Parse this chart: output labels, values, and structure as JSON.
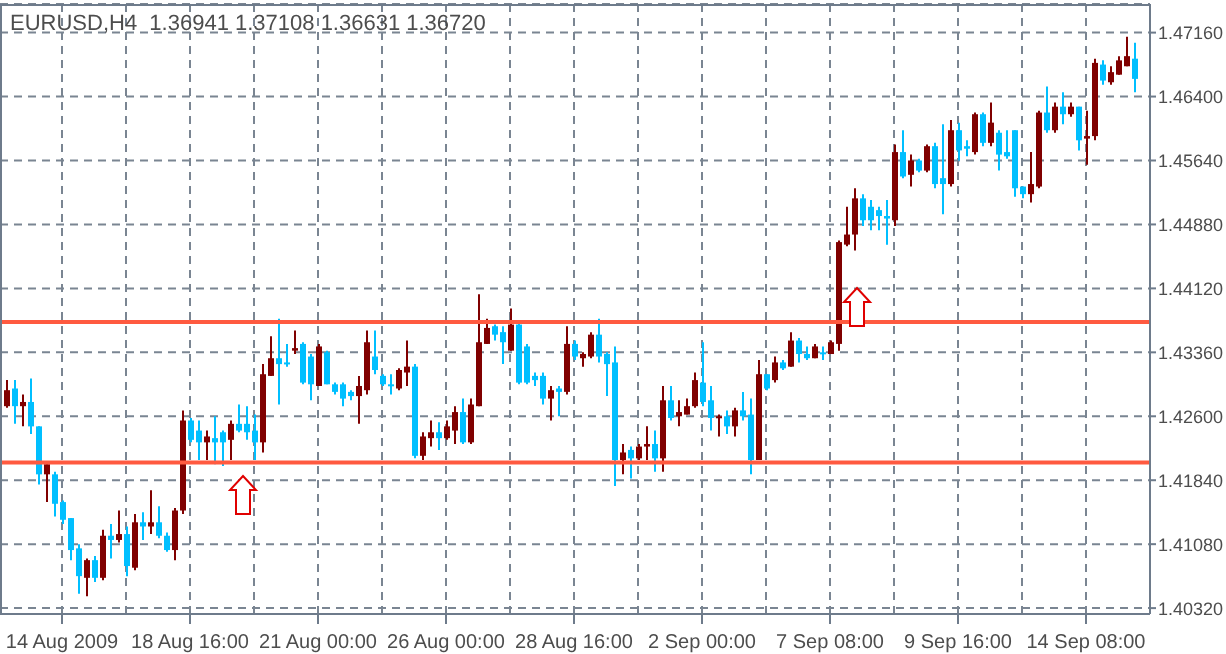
{
  "chart_data": {
    "type": "candlestick",
    "title": "EURUSD,H4  1.36941 1.37108 1.36631 1.36720",
    "categories": [
      null,
      null,
      null,
      null,
      null,
      null,
      null,
      "14 Aug 2009",
      null,
      null,
      null,
      null,
      null,
      null,
      null,
      null,
      null,
      null,
      null,
      null,
      null,
      null,
      null,
      "18 Aug 16:00",
      null,
      null,
      null,
      null,
      null,
      null,
      null,
      null,
      null,
      null,
      null,
      null,
      null,
      null,
      null,
      "21 Aug 00:00",
      null,
      null,
      null,
      null,
      null,
      null,
      null,
      null,
      null,
      null,
      null,
      null,
      null,
      null,
      null,
      "26 Aug 00:00",
      null,
      null,
      null,
      null,
      null,
      null,
      null,
      null,
      null,
      null,
      null,
      null,
      null,
      null,
      null,
      "28 Aug 16:00",
      null,
      null,
      null,
      null,
      null,
      null,
      null,
      null,
      null,
      null,
      null,
      null,
      null,
      null,
      null,
      "2 Sep 00:00",
      null,
      null,
      null,
      null,
      null,
      null,
      null,
      null,
      null,
      null,
      null,
      null,
      null,
      null,
      null,
      "7 Sep 08:00",
      null,
      null,
      null,
      null,
      null,
      null,
      null,
      null,
      null,
      null,
      null,
      null,
      null,
      null,
      null,
      "9 Sep 16:00",
      null,
      null,
      null,
      null,
      null,
      null,
      null,
      null,
      null,
      null,
      null,
      null,
      null,
      null,
      null,
      "14 Sep 08:00",
      null,
      null,
      null,
      null,
      null,
      null
    ],
    "ohlc": [
      [
        1.4272,
        1.4303,
        1.427,
        1.4291
      ],
      [
        1.4293,
        1.4303,
        1.4251,
        1.4272
      ],
      [
        1.4272,
        1.4286,
        1.4248,
        1.4277
      ],
      [
        1.4277,
        1.4305,
        1.4239,
        1.4248
      ],
      [
        1.4248,
        1.4248,
        1.4179,
        1.4191
      ],
      [
        1.4191,
        1.4203,
        1.4158,
        1.4203
      ],
      [
        1.4191,
        1.4194,
        1.4141,
        1.4156
      ],
      [
        1.4158,
        1.416,
        1.4132,
        1.4137
      ],
      [
        1.4139,
        1.4139,
        1.4089,
        1.4101
      ],
      [
        1.4103,
        1.4108,
        1.4049,
        1.407
      ],
      [
        1.4068,
        1.4091,
        1.4046,
        1.4089
      ],
      [
        1.4089,
        1.4094,
        1.4063,
        1.4068
      ],
      [
        1.4068,
        1.4125,
        1.4065,
        1.4118
      ],
      [
        1.4118,
        1.4132,
        1.4091,
        1.4113
      ],
      [
        1.4113,
        1.4148,
        1.411,
        1.412
      ],
      [
        1.412,
        1.4129,
        1.407,
        1.4082
      ],
      [
        1.408,
        1.4144,
        1.4077,
        1.4134
      ],
      [
        1.4134,
        1.4146,
        1.4113,
        1.4129
      ],
      [
        1.4129,
        1.4172,
        1.412,
        1.4134
      ],
      [
        1.4134,
        1.4153,
        1.4115,
        1.4118
      ],
      [
        1.4118,
        1.4122,
        1.4099,
        1.4101
      ],
      [
        1.4101,
        1.4151,
        1.4089,
        1.4148
      ],
      [
        1.4148,
        1.4267,
        1.4144,
        1.4255
      ],
      [
        1.4255,
        1.4258,
        1.4229,
        1.4232
      ],
      [
        1.4243,
        1.4255,
        1.4208,
        1.4229
      ],
      [
        1.4229,
        1.4243,
        1.4208,
        1.4236
      ],
      [
        1.4234,
        1.426,
        1.4203,
        1.4229
      ],
      [
        1.4241,
        1.4243,
        1.4201,
        1.4229
      ],
      [
        1.4232,
        1.4255,
        1.4208,
        1.4251
      ],
      [
        1.4251,
        1.4274,
        1.4241,
        1.4243
      ],
      [
        1.4251,
        1.4272,
        1.4232,
        1.4241
      ],
      [
        1.4243,
        1.4262,
        1.4208,
        1.4229
      ],
      [
        1.4229,
        1.4322,
        1.4217,
        1.431
      ],
      [
        1.4308,
        1.4355,
        1.4308,
        1.4329
      ],
      [
        1.4329,
        1.4376,
        1.4274,
        1.4322
      ],
      [
        1.4324,
        1.4346,
        1.4319,
        1.4322
      ],
      [
        1.4338,
        1.4362,
        1.4334,
        1.4341
      ],
      [
        1.4346,
        1.4348,
        1.4298,
        1.43
      ],
      [
        1.4331,
        1.4334,
        1.4279,
        1.4298
      ],
      [
        1.4296,
        1.4346,
        1.4296,
        1.4343
      ],
      [
        1.4336,
        1.4338,
        1.4298,
        1.4298
      ],
      [
        1.4298,
        1.43,
        1.4286,
        1.4289
      ],
      [
        1.4298,
        1.43,
        1.4272,
        1.4281
      ],
      [
        1.4289,
        1.4291,
        1.4279,
        1.4284
      ],
      [
        1.4284,
        1.4308,
        1.4251,
        1.4296
      ],
      [
        1.4291,
        1.4362,
        1.4286,
        1.4348
      ],
      [
        1.4331,
        1.4362,
        1.431,
        1.4315
      ],
      [
        1.4308,
        1.431,
        1.4296,
        1.4298
      ],
      [
        1.4298,
        1.431,
        1.4286,
        1.4296
      ],
      [
        1.4293,
        1.4317,
        1.4291,
        1.4315
      ],
      [
        1.4312,
        1.435,
        1.4296,
        1.4319
      ],
      [
        1.4319,
        1.4322,
        1.421,
        1.4213
      ],
      [
        1.4213,
        1.4241,
        1.4208,
        1.4236
      ],
      [
        1.4234,
        1.4255,
        1.4224,
        1.4241
      ],
      [
        1.4241,
        1.4253,
        1.422,
        1.4234
      ],
      [
        1.4234,
        1.4255,
        1.4232,
        1.4248
      ],
      [
        1.4243,
        1.4272,
        1.4227,
        1.4265
      ],
      [
        1.4265,
        1.4281,
        1.4227,
        1.4229
      ],
      [
        1.4229,
        1.4281,
        1.4227,
        1.4274
      ],
      [
        1.4272,
        1.4405,
        1.4272,
        1.4348
      ],
      [
        1.4346,
        1.4376,
        1.4346,
        1.4365
      ],
      [
        1.4367,
        1.4369,
        1.435,
        1.4357
      ],
      [
        1.436,
        1.4367,
        1.4322,
        1.4348
      ],
      [
        1.4338,
        1.4388,
        1.4338,
        1.4369
      ],
      [
        1.4369,
        1.4372,
        1.4298,
        1.43
      ],
      [
        1.4343,
        1.4346,
        1.4298,
        1.43
      ],
      [
        1.4308,
        1.4312,
        1.4296,
        1.4303
      ],
      [
        1.4308,
        1.4312,
        1.4274,
        1.4281
      ],
      [
        1.4281,
        1.4296,
        1.4255,
        1.4291
      ],
      [
        1.4293,
        1.4296,
        1.426,
        1.4289
      ],
      [
        1.4289,
        1.4367,
        1.4286,
        1.4346
      ],
      [
        1.4346,
        1.435,
        1.4327,
        1.4331
      ],
      [
        1.4329,
        1.4336,
        1.4319,
        1.4334
      ],
      [
        1.4331,
        1.436,
        1.4329,
        1.4357
      ],
      [
        1.4357,
        1.4376,
        1.4324,
        1.4331
      ],
      [
        1.4334,
        1.4336,
        1.4284,
        1.4322
      ],
      [
        1.4324,
        1.4343,
        1.4177,
        1.4208
      ],
      [
        1.4208,
        1.4227,
        1.4191,
        1.4217
      ],
      [
        1.422,
        1.4224,
        1.4186,
        1.421
      ],
      [
        1.421,
        1.4227,
        1.4208,
        1.4224
      ],
      [
        1.4224,
        1.4248,
        1.4208,
        1.4227
      ],
      [
        1.4227,
        1.4243,
        1.4194,
        1.421
      ],
      [
        1.421,
        1.4296,
        1.4194,
        1.4279
      ],
      [
        1.4279,
        1.4296,
        1.4255,
        1.4258
      ],
      [
        1.426,
        1.4279,
        1.4248,
        1.4265
      ],
      [
        1.4262,
        1.4281,
        1.4262,
        1.4272
      ],
      [
        1.4272,
        1.4312,
        1.427,
        1.4303
      ],
      [
        1.43,
        1.4348,
        1.4272,
        1.4277
      ],
      [
        1.4279,
        1.4296,
        1.4243,
        1.4258
      ],
      [
        1.4258,
        1.4262,
        1.4236,
        1.426
      ],
      [
        1.426,
        1.4267,
        1.4239,
        1.4248
      ],
      [
        1.4248,
        1.427,
        1.4236,
        1.4267
      ],
      [
        1.4267,
        1.4289,
        1.4255,
        1.426
      ],
      [
        1.4262,
        1.4281,
        1.4191,
        1.4208
      ],
      [
        1.4208,
        1.4327,
        1.4208,
        1.431
      ],
      [
        1.431,
        1.431,
        1.4291,
        1.4293
      ],
      [
        1.4303,
        1.4331,
        1.43,
        1.4324
      ],
      [
        1.4324,
        1.4327,
        1.4315,
        1.4317
      ],
      [
        1.4319,
        1.436,
        1.4319,
        1.435
      ],
      [
        1.435,
        1.4353,
        1.4324,
        1.4334
      ],
      [
        1.4334,
        1.4343,
        1.4327,
        1.4329
      ],
      [
        1.4329,
        1.4346,
        1.4329,
        1.4343
      ],
      [
        1.4336,
        1.4343,
        1.4327,
        1.4334
      ],
      [
        1.4334,
        1.435,
        1.4334,
        1.4348
      ],
      [
        1.4346,
        1.4469,
        1.4338,
        1.4467
      ],
      [
        1.4464,
        1.4509,
        1.4462,
        1.4476
      ],
      [
        1.4476,
        1.4531,
        1.4457,
        1.4519
      ],
      [
        1.4519,
        1.4524,
        1.4486,
        1.4493
      ],
      [
        1.4509,
        1.4517,
        1.4481,
        1.4493
      ],
      [
        1.4505,
        1.4509,
        1.4481,
        1.4498
      ],
      [
        1.4498,
        1.4517,
        1.4464,
        1.4495
      ],
      [
        1.4493,
        1.4583,
        1.4486,
        1.4574
      ],
      [
        1.4574,
        1.46,
        1.4543,
        1.4545
      ],
      [
        1.4547,
        1.4571,
        1.4533,
        1.4564
      ],
      [
        1.4564,
        1.4566,
        1.455,
        1.4552
      ],
      [
        1.4552,
        1.4583,
        1.455,
        1.4581
      ],
      [
        1.4581,
        1.4585,
        1.4531,
        1.4536
      ],
      [
        1.4543,
        1.4607,
        1.45,
        1.4536
      ],
      [
        1.4536,
        1.4612,
        1.4533,
        1.46
      ],
      [
        1.46,
        1.4609,
        1.4564,
        1.4576
      ],
      [
        1.4581,
        1.4588,
        1.4569,
        1.4578
      ],
      [
        1.4574,
        1.4621,
        1.4571,
        1.4619
      ],
      [
        1.4619,
        1.4621,
        1.4581,
        1.4585
      ],
      [
        1.4585,
        1.4633,
        1.4581,
        1.4609
      ],
      [
        1.4597,
        1.46,
        1.4552,
        1.4571
      ],
      [
        1.4574,
        1.46,
        1.4566,
        1.4569
      ],
      [
        1.46,
        1.46,
        1.4521,
        1.4531
      ],
      [
        1.4533,
        1.4533,
        1.4519,
        1.4524
      ],
      [
        1.4524,
        1.4574,
        1.4514,
        1.4536
      ],
      [
        1.4533,
        1.4623,
        1.4531,
        1.4621
      ],
      [
        1.4621,
        1.4652,
        1.4597,
        1.46
      ],
      [
        1.46,
        1.4633,
        1.4597,
        1.4628
      ],
      [
        1.4628,
        1.4645,
        1.4607,
        1.4619
      ],
      [
        1.4619,
        1.4633,
        1.4616,
        1.4628
      ],
      [
        1.4628,
        1.4628,
        1.4576,
        1.4588
      ],
      [
        1.459,
        1.4623,
        1.4559,
        1.4593
      ],
      [
        1.4593,
        1.4685,
        1.4588,
        1.468
      ],
      [
        1.4678,
        1.4683,
        1.4654,
        1.4659
      ],
      [
        1.4657,
        1.4676,
        1.4654,
        1.4669
      ],
      [
        1.4666,
        1.4688,
        1.4666,
        1.4683
      ],
      [
        1.4676,
        1.4711,
        1.4676,
        1.4688
      ],
      [
        1.4685,
        1.4704,
        1.4645,
        1.4661
      ]
    ],
    "colors": [
      "#800000",
      "#00bfff",
      "#800000",
      "#00bfff",
      "#00bfff",
      "#800000",
      "#00bfff",
      "#00bfff",
      "#00bfff",
      "#00bfff",
      "#800000",
      "#00bfff",
      "#800000",
      "#00bfff",
      "#800000",
      "#00bfff",
      "#800000",
      "#00bfff",
      "#800000",
      "#00bfff",
      "#00bfff",
      "#800000",
      "#800000",
      "#00bfff",
      "#00bfff",
      "#800000",
      "#00bfff",
      "#00bfff",
      "#800000",
      "#00bfff",
      "#00bfff",
      "#00bfff",
      "#800000",
      "#800000",
      "#00bfff",
      "#00bfff",
      "#800000",
      "#00bfff",
      "#00bfff",
      "#800000",
      "#00bfff",
      "#00bfff",
      "#00bfff",
      "#00bfff",
      "#800000",
      "#800000",
      "#00bfff",
      "#00bfff",
      "#00bfff",
      "#800000",
      "#800000",
      "#00bfff",
      "#800000",
      "#800000",
      "#00bfff",
      "#800000",
      "#800000",
      "#00bfff",
      "#800000",
      "#800000",
      "#800000",
      "#00bfff",
      "#00bfff",
      "#800000",
      "#00bfff",
      "#00bfff",
      "#00bfff",
      "#00bfff",
      "#800000",
      "#00bfff",
      "#800000",
      "#00bfff",
      "#800000",
      "#800000",
      "#00bfff",
      "#00bfff",
      "#00bfff",
      "#800000",
      "#00bfff",
      "#800000",
      "#800000",
      "#00bfff",
      "#800000",
      "#00bfff",
      "#800000",
      "#800000",
      "#800000",
      "#00bfff",
      "#00bfff",
      "#800000",
      "#00bfff",
      "#800000",
      "#00bfff",
      "#00bfff",
      "#800000",
      "#00bfff",
      "#800000",
      "#00bfff",
      "#800000",
      "#00bfff",
      "#00bfff",
      "#800000",
      "#00bfff",
      "#800000",
      "#800000",
      "#800000",
      "#800000",
      "#00bfff",
      "#00bfff",
      "#00bfff",
      "#00bfff",
      "#800000",
      "#00bfff",
      "#800000",
      "#00bfff",
      "#800000",
      "#00bfff",
      "#00bfff",
      "#800000",
      "#00bfff",
      "#00bfff",
      "#800000",
      "#00bfff",
      "#800000",
      "#00bfff",
      "#00bfff",
      "#00bfff",
      "#00bfff",
      "#800000",
      "#800000",
      "#00bfff",
      "#800000",
      "#00bfff",
      "#800000",
      "#00bfff",
      "#800000",
      "#800000",
      "#00bfff",
      "#800000",
      "#800000",
      "#800000",
      "#00bfff"
    ],
    "ylim": [
      1.4025,
      1.475
    ],
    "yticks": [
      {
        "value": 1.4032,
        "label": "1.40320"
      },
      {
        "value": 1.4108,
        "label": "1.41080"
      },
      {
        "value": 1.4184,
        "label": "1.41840"
      },
      {
        "value": 1.426,
        "label": "1.42600"
      },
      {
        "value": 1.4336,
        "label": "1.43360"
      },
      {
        "value": 1.4412,
        "label": "1.44120"
      },
      {
        "value": 1.4488,
        "label": "1.44880"
      },
      {
        "value": 1.4564,
        "label": "1.45640"
      },
      {
        "value": 1.464,
        "label": "1.46400"
      },
      {
        "value": 1.4716,
        "label": "1.47160"
      }
    ],
    "ref_lines": [
      {
        "axis": "y",
        "value": 1.4372,
        "color": "#ff5a40"
      },
      {
        "axis": "y",
        "value": 1.4205,
        "color": "#ff5a40"
      }
    ],
    "grid": true
  }
}
